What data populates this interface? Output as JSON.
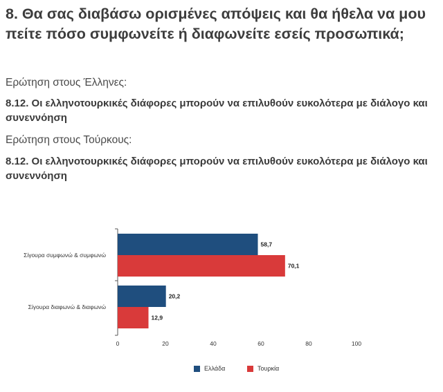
{
  "header": {
    "title": "8. Θα σας διαβάσω ορισμένες απόψεις και θα ήθελα να μου πείτε πόσο συμφωνείτε ή διαφωνείτε εσείς προσωπικά;",
    "greek_intro": "Ερώτηση στους Έλληνες:",
    "greek_question": "8.12. Οι ελληνοτουρκικές διάφορες μπορούν να επιλυθούν ευκολότερα με διάλογο και συνεννόηση",
    "turkish_intro": "Ερώτηση στους Τούρκους:",
    "turkish_question": "8.12. Οι ελληνοτουρκικές διάφορες μπορούν να επιλυθούν ευκολότερα με διάλογο και συνεννόηση"
  },
  "colors": {
    "greece": "#1f4e7e",
    "turkey": "#d93a3a",
    "axis": "#555555"
  },
  "chart_data": {
    "type": "bar",
    "orientation": "horizontal",
    "categories": [
      "Σίγουρα συμφωνώ & συμφωνώ",
      "Σίγουρα διαφωνώ & διαφωνώ"
    ],
    "series": [
      {
        "name": "Ελλάδα",
        "values": [
          58.7,
          20.2
        ],
        "labels": [
          "58,7",
          "20,2"
        ]
      },
      {
        "name": "Τουρκία",
        "values": [
          70.1,
          12.9
        ],
        "labels": [
          "70,1",
          "12,9"
        ]
      }
    ],
    "xlim": [
      0,
      100
    ],
    "xticks": [
      "0",
      "20",
      "40",
      "60",
      "80",
      "100"
    ],
    "grid": false,
    "legend_position": "bottom"
  }
}
